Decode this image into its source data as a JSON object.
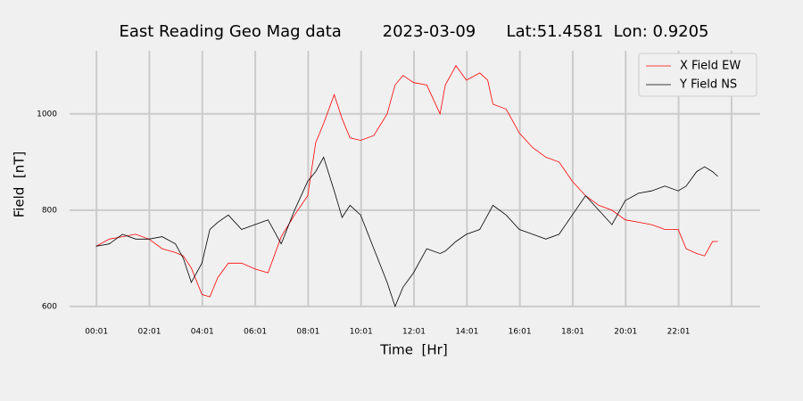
{
  "chart_data": {
    "type": "line",
    "title": "East Reading Geo Mag data        2023-03-09      Lat:51.4581  Lon: 0.9205",
    "xlabel": "Time  [Hr]",
    "ylabel": "Field  [nT]",
    "x": [
      0,
      0.5,
      1,
      1.5,
      2,
      2.5,
      3,
      3.3,
      3.6,
      4,
      4.3,
      4.6,
      5,
      5.5,
      6,
      6.5,
      7,
      7.5,
      8,
      8.3,
      8.6,
      9,
      9.3,
      9.6,
      10,
      10.5,
      11,
      11.3,
      11.6,
      12,
      12.5,
      13,
      13.2,
      13.6,
      14,
      14.5,
      14.8,
      15,
      15.5,
      16,
      16.5,
      17,
      17.5,
      18,
      18.5,
      19,
      19.5,
      20,
      20.5,
      21,
      21.5,
      22,
      22.3,
      22.7,
      23,
      23.3,
      23.5
    ],
    "series": [
      {
        "name": "X Field EW",
        "color": "#ff0000",
        "values": [
          725,
          740,
          745,
          750,
          740,
          720,
          712,
          705,
          680,
          625,
          620,
          660,
          690,
          690,
          678,
          670,
          745,
          790,
          830,
          940,
          980,
          1040,
          990,
          950,
          945,
          955,
          1000,
          1060,
          1080,
          1065,
          1060,
          1000,
          1060,
          1100,
          1070,
          1085,
          1070,
          1020,
          1010,
          960,
          930,
          910,
          900,
          860,
          830,
          810,
          800,
          780,
          775,
          770,
          760,
          760,
          720,
          710,
          705,
          735,
          735
        ]
      },
      {
        "name": "Y Field NS",
        "color": "#000000",
        "values": [
          725,
          730,
          750,
          740,
          740,
          745,
          730,
          700,
          650,
          690,
          760,
          775,
          790,
          760,
          770,
          780,
          730,
          800,
          860,
          880,
          910,
          840,
          785,
          810,
          790,
          720,
          650,
          600,
          640,
          670,
          720,
          710,
          715,
          735,
          750,
          760,
          790,
          810,
          790,
          760,
          750,
          740,
          750,
          790,
          830,
          800,
          770,
          820,
          835,
          840,
          850,
          840,
          850,
          880,
          890,
          880,
          870
        ]
      }
    ],
    "xlim": [
      -1,
      25.1
    ],
    "ylim": [
      598,
      1131
    ],
    "xticks": [
      {
        "value": 0.017,
        "label": "00:01"
      },
      {
        "value": 2.017,
        "label": "02:01"
      },
      {
        "value": 4.017,
        "label": "04:01"
      },
      {
        "value": 6.017,
        "label": "06:01"
      },
      {
        "value": 8.017,
        "label": "08:01"
      },
      {
        "value": 10.017,
        "label": "10:01"
      },
      {
        "value": 12.017,
        "label": "12:01"
      },
      {
        "value": 14.017,
        "label": "14:01"
      },
      {
        "value": 16.017,
        "label": "16:01"
      },
      {
        "value": 18.017,
        "label": "18:01"
      },
      {
        "value": 20.017,
        "label": "20:01"
      },
      {
        "value": 22.017,
        "label": "22:01"
      },
      {
        "value": 24.017,
        "label": null
      }
    ],
    "yticks": [
      600,
      800,
      1000
    ],
    "grid": true,
    "legend": "upper right"
  }
}
